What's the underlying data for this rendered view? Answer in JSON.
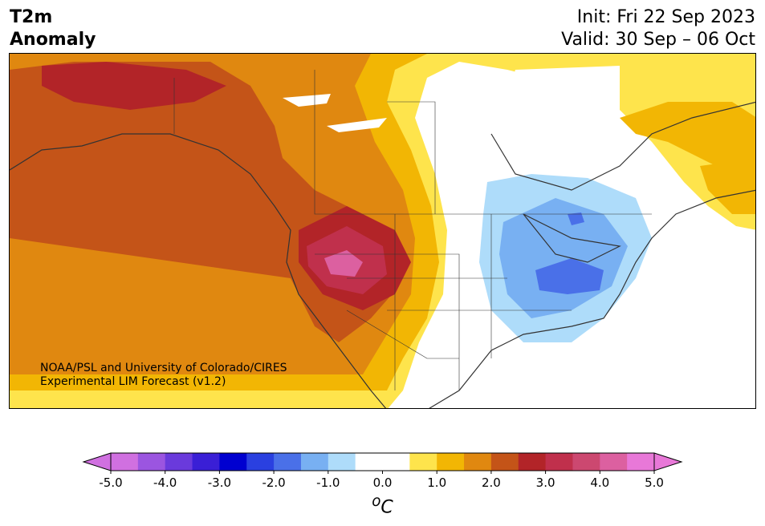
{
  "header": {
    "title_line1": "T2m",
    "title_line2": "Anomaly",
    "init": "Init: Fri 22 Sep 2023",
    "valid": "Valid: 30 Sep – 06 Oct"
  },
  "map": {
    "credit_line1": "NOAA/PSL and University of Colorado/CIRES",
    "credit_line2": "Experimental LIM Forecast (v1.2)",
    "region": "North America",
    "warm_anomaly_center": "US West / Great Basin",
    "cold_anomaly_center": "US Great Lakes / Ohio Valley"
  },
  "colorbar": {
    "unit_base": "o",
    "unit_letter": "C",
    "ticks": [
      "-5.0",
      "-4.0",
      "-3.0",
      "-2.0",
      "-1.0",
      "0.0",
      "1.0",
      "2.0",
      "3.0",
      "4.0",
      "5.0"
    ],
    "colors": [
      "#d070e0",
      "#9b55e0",
      "#6a3adc",
      "#3a1fd6",
      "#0000d0",
      "#2a40e0",
      "#4a70e8",
      "#78b0f2",
      "#aedcfa",
      "#ffffff",
      "#ffffff",
      "#fee44c",
      "#f2b604",
      "#e08810",
      "#c45418",
      "#b22428",
      "#c0304c",
      "#cc4870",
      "#dc60a0",
      "#e878d8"
    ],
    "min_color": "#d070e0",
    "max_color": "#e878d8"
  }
}
